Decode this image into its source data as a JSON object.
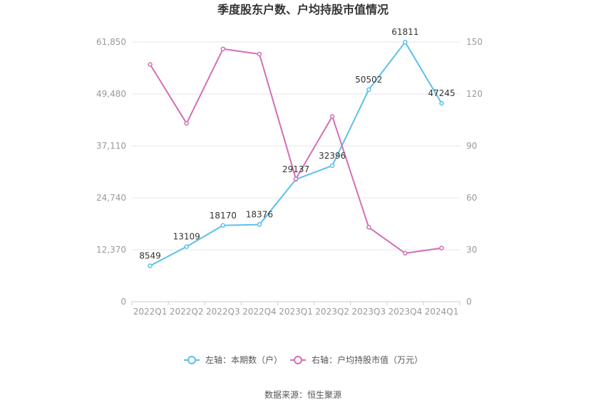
{
  "chart_data": {
    "type": "line",
    "title": "季度股东户数、户均持股市值情况",
    "categories": [
      "2022Q1",
      "2022Q2",
      "2022Q3",
      "2022Q4",
      "2023Q1",
      "2023Q2",
      "2023Q3",
      "2023Q4",
      "2024Q1"
    ],
    "series": [
      {
        "name": "左轴：本期数（户）",
        "axis": "left",
        "color": "#5bc0eb",
        "values": [
          8549,
          13109,
          18170,
          18376,
          29137,
          32396,
          50502,
          61811,
          47245
        ],
        "labels": [
          "8549",
          "13109",
          "18170",
          "18376",
          "29137",
          "32396",
          "50502",
          "61811",
          "47245"
        ]
      },
      {
        "name": "右轴：户均持股市值（万元）",
        "axis": "right",
        "color": "#d26fb4",
        "values": [
          137,
          103,
          146,
          143,
          71,
          107,
          43,
          28,
          31
        ]
      }
    ],
    "y_left": {
      "min": 0,
      "max": 61850,
      "ticks": [
        0,
        12370,
        24740,
        37110,
        49480,
        61850
      ],
      "tick_labels": [
        "0",
        "12,370",
        "24,740",
        "37,110",
        "49,480",
        "61,850"
      ]
    },
    "y_right": {
      "min": 0,
      "max": 150,
      "ticks": [
        0,
        30,
        60,
        90,
        120,
        150
      ],
      "tick_labels": [
        "0",
        "30",
        "60",
        "90",
        "120",
        "150"
      ]
    },
    "grid": true,
    "legend_position": "bottom"
  },
  "source": "数据来源：恒生聚源"
}
